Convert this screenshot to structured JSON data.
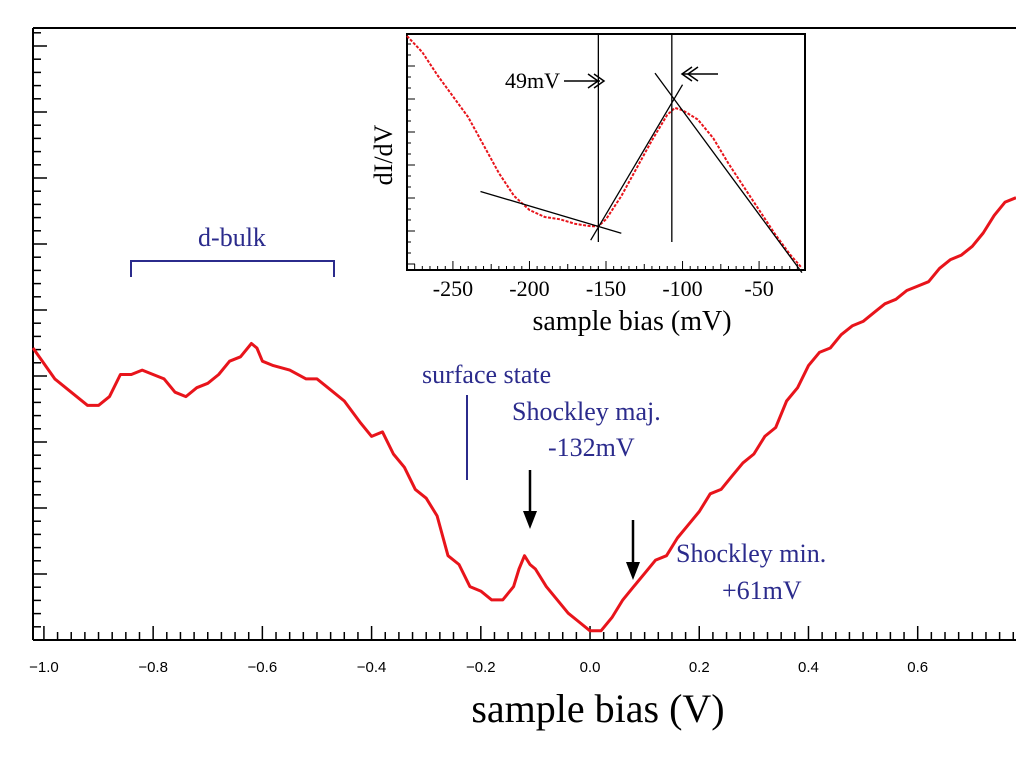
{
  "chart_data": [
    {
      "type": "line",
      "xlabel": "sample bias (V)",
      "ylabel": "",
      "xlim": [
        -1.02,
        0.78
      ],
      "ylim": [
        0.0,
        1.0
      ],
      "x_tick_labels": [
        "−1.0",
        "−0.8",
        "−0.6",
        "−0.4",
        "−0.2",
        "0.0",
        "0.2",
        "0.4",
        "0.6"
      ],
      "x_ticks": [
        -1.0,
        -0.8,
        -0.6,
        -0.4,
        -0.2,
        0.0,
        0.2,
        0.4,
        0.6
      ],
      "grid": false,
      "series": [
        {
          "name": "dI/dV",
          "color": "#e8141b",
          "x": [
            -1.02,
            -0.98,
            -0.95,
            -0.92,
            -0.9,
            -0.88,
            -0.86,
            -0.84,
            -0.82,
            -0.8,
            -0.78,
            -0.76,
            -0.74,
            -0.72,
            -0.7,
            -0.68,
            -0.66,
            -0.64,
            -0.62,
            -0.61,
            -0.6,
            -0.58,
            -0.55,
            -0.52,
            -0.5,
            -0.48,
            -0.45,
            -0.42,
            -0.4,
            -0.38,
            -0.36,
            -0.34,
            -0.32,
            -0.3,
            -0.28,
            -0.26,
            -0.24,
            -0.22,
            -0.2,
            -0.18,
            -0.16,
            -0.14,
            -0.13,
            -0.12,
            -0.11,
            -0.1,
            -0.08,
            -0.06,
            -0.04,
            -0.02,
            0.0,
            0.02,
            0.04,
            0.06,
            0.08,
            0.1,
            0.12,
            0.14,
            0.16,
            0.18,
            0.2,
            0.22,
            0.24,
            0.26,
            0.28,
            0.3,
            0.32,
            0.34,
            0.36,
            0.38,
            0.4,
            0.42,
            0.44,
            0.46,
            0.48,
            0.5,
            0.52,
            0.54,
            0.56,
            0.58,
            0.6,
            0.62,
            0.64,
            0.66,
            0.68,
            0.7,
            0.72,
            0.74,
            0.76,
            0.78
          ],
          "y": [
            0.62,
            0.55,
            0.52,
            0.49,
            0.49,
            0.51,
            0.56,
            0.56,
            0.57,
            0.56,
            0.55,
            0.52,
            0.51,
            0.53,
            0.54,
            0.56,
            0.59,
            0.6,
            0.63,
            0.62,
            0.59,
            0.58,
            0.57,
            0.55,
            0.55,
            0.53,
            0.5,
            0.45,
            0.42,
            0.43,
            0.38,
            0.35,
            0.3,
            0.28,
            0.24,
            0.15,
            0.13,
            0.08,
            0.07,
            0.05,
            0.05,
            0.08,
            0.12,
            0.15,
            0.13,
            0.12,
            0.08,
            0.05,
            0.02,
            0.0,
            -0.02,
            -0.02,
            0.01,
            0.05,
            0.08,
            0.11,
            0.14,
            0.15,
            0.19,
            0.22,
            0.25,
            0.29,
            0.3,
            0.33,
            0.36,
            0.38,
            0.42,
            0.44,
            0.5,
            0.53,
            0.58,
            0.61,
            0.62,
            0.65,
            0.67,
            0.68,
            0.7,
            0.72,
            0.73,
            0.75,
            0.76,
            0.77,
            0.8,
            0.82,
            0.83,
            0.85,
            0.88,
            0.92,
            0.95,
            0.96
          ]
        }
      ],
      "annotations": [
        {
          "text": "d-bulk",
          "x_range": [
            -0.86,
            -0.49
          ]
        },
        {
          "text": "surface state",
          "x": -0.25
        },
        {
          "text": "Shockley maj.",
          "line2": "-132mV",
          "x": -0.14
        },
        {
          "text": "Shockley min.",
          "line2": "+61mV",
          "x": 0.05
        }
      ],
      "annotation_color": "#2b2b8c"
    },
    {
      "type": "line",
      "title": "inset",
      "xlabel": "sample bias (mV)",
      "ylabel": "dI/dV",
      "xlim": [
        -280,
        -20
      ],
      "ylim": [
        0.0,
        1.0
      ],
      "x_ticks": [
        -250,
        -200,
        -150,
        -100,
        -50
      ],
      "x_tick_labels": [
        "-250",
        "-200",
        "-150",
        "-100",
        "-50"
      ],
      "series": [
        {
          "name": "dI/dV",
          "color": "#e8141b",
          "x": [
            -280,
            -270,
            -260,
            -250,
            -240,
            -230,
            -220,
            -210,
            -200,
            -190,
            -180,
            -170,
            -160,
            -155,
            -150,
            -140,
            -130,
            -120,
            -110,
            -105,
            -100,
            -90,
            -80,
            -70,
            -60,
            -50,
            -40,
            -30,
            -22
          ],
          "y": [
            1.0,
            0.93,
            0.83,
            0.74,
            0.65,
            0.53,
            0.41,
            0.31,
            0.25,
            0.22,
            0.21,
            0.19,
            0.18,
            0.18,
            0.21,
            0.31,
            0.43,
            0.55,
            0.66,
            0.69,
            0.68,
            0.64,
            0.56,
            0.45,
            0.35,
            0.25,
            0.15,
            0.06,
            0.0
          ]
        }
      ],
      "fit_lines": [
        {
          "name": "lower-left-tangent",
          "x": [
            -232,
            -140
          ],
          "y": [
            0.33,
            0.15
          ]
        },
        {
          "name": "rising-tangent",
          "x": [
            -160,
            -100
          ],
          "y": [
            0.12,
            0.79
          ]
        },
        {
          "name": "falling-tangent",
          "x": [
            -118,
            -22
          ],
          "y": [
            0.84,
            -0.02
          ]
        }
      ],
      "markers": [
        {
          "name": "left-vline",
          "x": -155
        },
        {
          "name": "right-vline",
          "x": -107
        }
      ],
      "annotations": [
        {
          "text": "49mV",
          "note": "gap between markers"
        }
      ]
    }
  ]
}
